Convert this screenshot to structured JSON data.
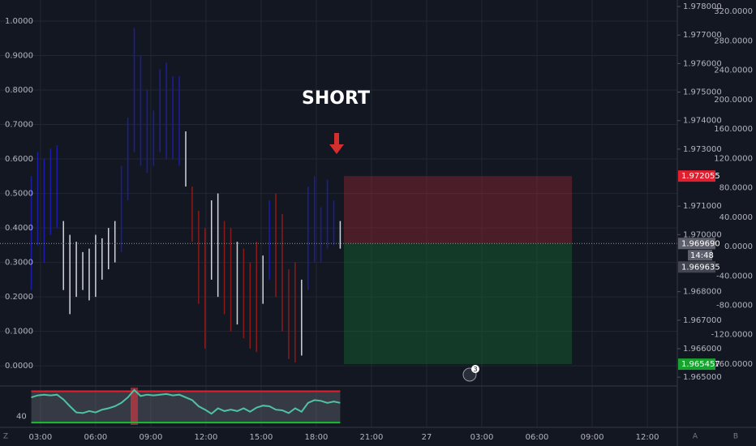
{
  "chart_data": {
    "type": "range",
    "annotation": "SHORT",
    "x": [
      2.5,
      2.85,
      3.2,
      3.55,
      3.9,
      4.25,
      4.6,
      4.95,
      5.3,
      5.65,
      6.0,
      6.35,
      6.7,
      7.05,
      7.4,
      7.75,
      8.1,
      8.45,
      8.8,
      9.15,
      9.5,
      9.85,
      10.2,
      10.55,
      10.9,
      11.25,
      11.6,
      11.95,
      12.3,
      12.65,
      13.0,
      13.35,
      13.7,
      14.05,
      14.4,
      14.75,
      15.1,
      15.45,
      15.8,
      16.15,
      16.5,
      16.85,
      17.2,
      17.55,
      17.9,
      18.25,
      18.6,
      18.95,
      19.3
    ],
    "high": [
      0.55,
      0.62,
      0.6,
      0.63,
      0.64,
      0.42,
      0.38,
      0.36,
      0.33,
      0.34,
      0.38,
      0.37,
      0.4,
      0.42,
      0.58,
      0.72,
      0.98,
      0.9,
      0.8,
      0.74,
      0.86,
      0.88,
      0.84,
      0.84,
      0.68,
      0.52,
      0.45,
      0.4,
      0.48,
      0.5,
      0.42,
      0.4,
      0.36,
      0.34,
      0.3,
      0.36,
      0.32,
      0.48,
      0.5,
      0.44,
      0.28,
      0.3,
      0.25,
      0.52,
      0.55,
      0.46,
      0.54,
      0.48,
      0.42
    ],
    "low": [
      0.22,
      0.35,
      0.3,
      0.38,
      0.4,
      0.22,
      0.15,
      0.2,
      0.22,
      0.19,
      0.2,
      0.25,
      0.28,
      0.3,
      0.33,
      0.48,
      0.62,
      0.58,
      0.56,
      0.58,
      0.62,
      0.6,
      0.6,
      0.58,
      0.52,
      0.36,
      0.18,
      0.05,
      0.25,
      0.2,
      0.15,
      0.1,
      0.12,
      0.08,
      0.05,
      0.04,
      0.18,
      0.25,
      0.2,
      0.1,
      0.02,
      0.01,
      0.03,
      0.22,
      0.3,
      0.3,
      0.34,
      0.35,
      0.34
    ],
    "colors": [
      "#1c1caa",
      "#1c1caa",
      "#1c1caa",
      "#1c1caa",
      "#1c1caa",
      "#d1d4dc",
      "#d1d4dc",
      "#d1d4dc",
      "#d1d4dc",
      "#d1d4dc",
      "#d1d4dc",
      "#d1d4dc",
      "#d1d4dc",
      "#d1d4dc",
      "#1c1caa",
      "#1c1caa",
      "#1c1caa",
      "#1c1caa",
      "#1c1caa",
      "#1c1caa",
      "#1c1caa",
      "#1c1caa",
      "#1c1caa",
      "#1c1caa",
      "#d1d4dc",
      "#8b1a1a",
      "#8b1a1a",
      "#8b1a1a",
      "#d1d4dc",
      "#d1d4dc",
      "#8b1a1a",
      "#8b1a1a",
      "#d1d4dc",
      "#8b1a1a",
      "#8b1a1a",
      "#8b1a1a",
      "#d1d4dc",
      "#1c1caa",
      "#8b1a1a",
      "#8b1a1a",
      "#8b1a1a",
      "#8b1a1a",
      "#d1d4dc",
      "#1c1caa",
      "#1c1caa",
      "#1c1caa",
      "#1c1caa",
      "#1c1caa",
      "#d1d4dc"
    ],
    "xlim": [
      0.8,
      37.63
    ],
    "xticks": [
      {
        "value": 3,
        "label": "03:00"
      },
      {
        "value": 6,
        "label": "06:00"
      },
      {
        "value": 9,
        "label": "09:00"
      },
      {
        "value": 12,
        "label": "12:00"
      },
      {
        "value": 15,
        "label": "15:00"
      },
      {
        "value": 18,
        "label": "18:00"
      },
      {
        "value": 21,
        "label": "21:00"
      },
      {
        "value": 24,
        "label": "27"
      },
      {
        "value": 27,
        "label": "03:00"
      },
      {
        "value": 30,
        "label": "06:00"
      },
      {
        "value": 33,
        "label": "09:00"
      },
      {
        "value": 36,
        "label": "12:00"
      }
    ],
    "ylim": [
      -0.056,
      1.061
    ],
    "yticks": [
      {
        "value": 1,
        "label": "1.0000"
      },
      {
        "value": 0.9,
        "label": "0.9000"
      },
      {
        "value": 0.8,
        "label": "0.8000"
      },
      {
        "value": 0.7,
        "label": "0.7000"
      },
      {
        "value": 0.6,
        "label": "0.6000"
      },
      {
        "value": 0.5,
        "label": "0.5000"
      },
      {
        "value": 0.4,
        "label": "0.4000"
      },
      {
        "value": 0.3,
        "label": "0.3000"
      },
      {
        "value": 0.2,
        "label": "0.2000"
      },
      {
        "value": 0.1,
        "label": "0.1000"
      },
      {
        "value": 0,
        "label": "0.0000"
      }
    ],
    "grid": true,
    "price_axis": {
      "ylim": [
        1.96472,
        1.97823
      ],
      "yticks": [
        {
          "value": 1.978,
          "label": "1.978000"
        },
        {
          "value": 1.977,
          "label": "1.977000"
        },
        {
          "value": 1.976,
          "label": "1.976000"
        },
        {
          "value": 1.975,
          "label": "1.975000"
        },
        {
          "value": 1.974,
          "label": "1.974000"
        },
        {
          "value": 1.973,
          "label": "1.973000"
        },
        {
          "value": 1.971,
          "label": "1.971000"
        },
        {
          "value": 1.97,
          "label": "1.970000"
        },
        {
          "value": 1.968,
          "label": "1.968000"
        },
        {
          "value": 1.967,
          "label": "1.967000"
        },
        {
          "value": 1.966,
          "label": "1.966000"
        },
        {
          "value": 1.965,
          "label": "1.965000"
        }
      ]
    },
    "y2lim": [
      -188.7,
      335.5
    ],
    "y2ticks": [
      {
        "value": 320,
        "label": "320.0000"
      },
      {
        "value": 280,
        "label": "280.0000"
      },
      {
        "value": 240,
        "label": "240.0000"
      },
      {
        "value": 200,
        "label": "200.0000"
      },
      {
        "value": 160,
        "label": "160.0000"
      },
      {
        "value": 120,
        "label": "120.0000"
      },
      {
        "value": 80,
        "label": "80.0000"
      },
      {
        "value": 40,
        "label": "40.0000"
      },
      {
        "value": 0,
        "label": "0.0000"
      },
      {
        "value": -40,
        "label": "-40.0000"
      },
      {
        "value": -80,
        "label": "-80.0000"
      },
      {
        "value": -120,
        "label": "-120.0000"
      },
      {
        "value": -160,
        "label": "-160.0000"
      }
    ],
    "position": {
      "stop": 1.972055,
      "entry": {
        "value": 1.96969,
        "label": "1.969690"
      },
      "target": 1.965457,
      "x_start": 19.5,
      "x_end": 31.9
    },
    "last_price": 1.969635,
    "countdown": "14:48",
    "badge": "3",
    "buttons": [
      "Z",
      "A",
      "B"
    ],
    "indicator": {
      "values": [
        68,
        71,
        72,
        71,
        72,
        65,
        55,
        46,
        45,
        48,
        46,
        50,
        52,
        55,
        60,
        68,
        79,
        70,
        72,
        71,
        72,
        73,
        71,
        72,
        68,
        64,
        55,
        50,
        44,
        52,
        48,
        50,
        48,
        52,
        47,
        53,
        56,
        55,
        50,
        49,
        45,
        52,
        47,
        60,
        64,
        63,
        60,
        62,
        60
      ],
      "ylim": [
        30,
        80
      ],
      "yticks": [
        40
      ],
      "upper": 77,
      "lower": 31,
      "highlight": [
        7.9,
        8.3
      ]
    }
  }
}
